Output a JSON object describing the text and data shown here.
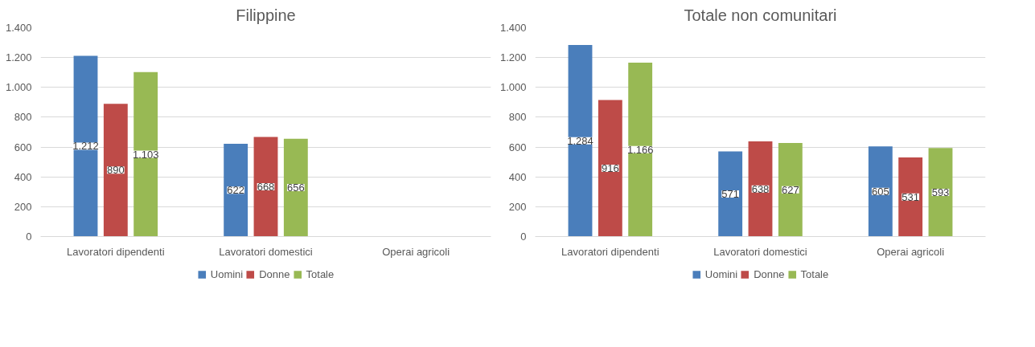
{
  "chart_data": [
    {
      "type": "bar",
      "title": "Filippine",
      "categories": [
        "Lavoratori dipendenti",
        "Lavoratori domestici",
        "Operai agricoli"
      ],
      "series": [
        {
          "name": "Uomini",
          "color": "#4a7ebb",
          "values": [
            1212,
            622,
            null
          ],
          "value_labels": [
            "1.212",
            "622",
            null
          ]
        },
        {
          "name": "Donne",
          "color": "#be4b48",
          "values": [
            890,
            668,
            null
          ],
          "value_labels": [
            "890",
            "668",
            null
          ]
        },
        {
          "name": "Totale",
          "color": "#98b954",
          "values": [
            1103,
            656,
            null
          ],
          "value_labels": [
            "1.103",
            "656",
            null
          ]
        }
      ],
      "ylim": [
        0,
        1400
      ],
      "yticks": [
        0,
        200,
        400,
        600,
        800,
        {
          "value": 1000,
          "label": "1.000"
        },
        {
          "value": 1200,
          "label": "1.200"
        },
        {
          "value": 1400,
          "label": "1.400"
        }
      ],
      "grid": "y",
      "legend": "bottom"
    },
    {
      "type": "bar",
      "title": "Totale non comunitari",
      "categories": [
        "Lavoratori dipendenti",
        "Lavoratori domestici",
        "Operai agricoli"
      ],
      "series": [
        {
          "name": "Uomini",
          "color": "#4a7ebb",
          "values": [
            1284,
            571,
            605
          ],
          "value_labels": [
            "1.284",
            "571",
            "605"
          ]
        },
        {
          "name": "Donne",
          "color": "#be4b48",
          "values": [
            916,
            638,
            531
          ],
          "value_labels": [
            "916",
            "638",
            "531"
          ]
        },
        {
          "name": "Totale",
          "color": "#98b954",
          "values": [
            1166,
            627,
            593
          ],
          "value_labels": [
            "1.166",
            "627",
            "593"
          ]
        }
      ],
      "ylim": [
        0,
        1400
      ],
      "yticks": [
        0,
        200,
        400,
        600,
        800,
        {
          "value": 1000,
          "label": "1.000"
        },
        {
          "value": 1200,
          "label": "1.200"
        },
        {
          "value": 1400,
          "label": "1.400"
        }
      ],
      "grid": "y",
      "legend": "bottom"
    }
  ]
}
